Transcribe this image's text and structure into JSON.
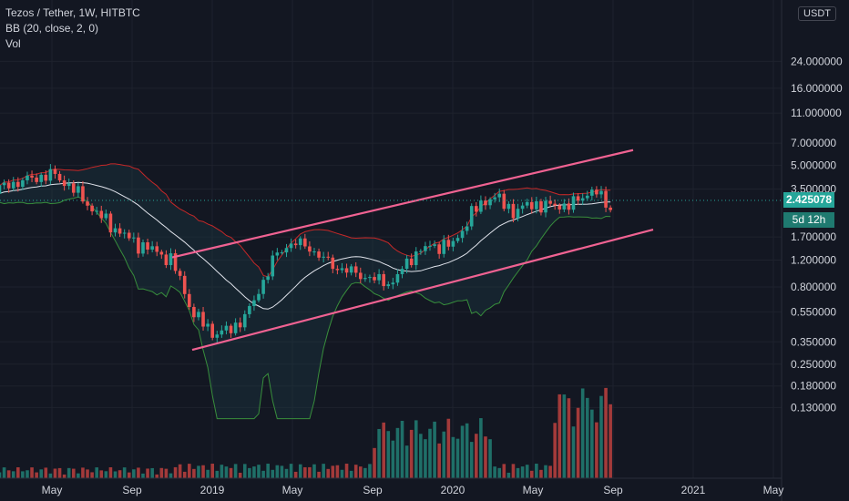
{
  "legend": {
    "symbol": "Tezos / Tether, 1W, HITBTC",
    "indicator": "BB (20, close, 2, 0)",
    "volume": "Vol"
  },
  "axis": {
    "currency_badge": "USDT",
    "last_price_label": "2.425078",
    "countdown_label": "5d 12h"
  },
  "colors": {
    "background": "#131722",
    "up": "#26a69a",
    "down": "#ef5350",
    "basis": "#e0e3eb",
    "upper_band": "#c62828",
    "lower_band": "#388e3c",
    "trendline": "#f06292",
    "last_price_bg": "#26a69a",
    "grid": "#1e222d"
  },
  "chart_data": {
    "type": "candlestick",
    "title": "Tezos / Tether, 1W, HITBTC",
    "y_scale": "log",
    "y_ticks": [
      "24.000000",
      "16.000000",
      "11.000000",
      "7.000000",
      "5.000000",
      "3.500000",
      "2.425078",
      "1.700000",
      "1.200000",
      "0.800000",
      "0.550000",
      "0.350000",
      "0.250000",
      "0.180000",
      "0.130000"
    ],
    "x_ticks": [
      "May",
      "Sep",
      "2019",
      "May",
      "Sep",
      "2020",
      "May",
      "Sep",
      "2021",
      "May"
    ],
    "last_price": 2.425078,
    "trendlines": [
      {
        "name": "channel-upper",
        "from": [
          "2018-11",
          1.25
        ],
        "to": [
          "2020-10",
          6.3
        ]
      },
      {
        "name": "channel-lower",
        "from": [
          "2018-12",
          0.31
        ],
        "to": [
          "2020-11",
          1.9
        ]
      }
    ],
    "series": [
      {
        "name": "price",
        "kind": "candles",
        "close_trajectory": [
          [
            "2018-01",
            3.0
          ],
          [
            "2018-03",
            3.8
          ],
          [
            "2018-05",
            4.4
          ],
          [
            "2018-06",
            3.6
          ],
          [
            "2018-07",
            2.6
          ],
          [
            "2018-08",
            2.0
          ],
          [
            "2018-09",
            1.6
          ],
          [
            "2018-10",
            1.4
          ],
          [
            "2018-11",
            1.2
          ],
          [
            "2018-12",
            0.55
          ],
          [
            "2019-01",
            0.4
          ],
          [
            "2019-02",
            0.42
          ],
          [
            "2019-03",
            0.6
          ],
          [
            "2019-04",
            1.2
          ],
          [
            "2019-05",
            1.6
          ],
          [
            "2019-06",
            1.4
          ],
          [
            "2019-07",
            1.1
          ],
          [
            "2019-08",
            1.0
          ],
          [
            "2019-09",
            0.9
          ],
          [
            "2019-10",
            0.85
          ],
          [
            "2019-11",
            1.3
          ],
          [
            "2019-12",
            1.5
          ],
          [
            "2020-01",
            1.5
          ],
          [
            "2020-02",
            2.5
          ],
          [
            "2020-03",
            3.2
          ],
          [
            "2020-04",
            2.5
          ],
          [
            "2020-05",
            2.8
          ],
          [
            "2020-06",
            2.7
          ],
          [
            "2020-07",
            2.8
          ],
          [
            "2020-08",
            3.5
          ],
          [
            "2020-09",
            2.5
          ],
          [
            "2020-10",
            2.4
          ]
        ]
      },
      {
        "name": "BB basis",
        "kind": "line"
      },
      {
        "name": "BB upper",
        "kind": "line"
      },
      {
        "name": "BB lower",
        "kind": "line"
      },
      {
        "name": "Vol",
        "kind": "volume-bars"
      }
    ]
  }
}
